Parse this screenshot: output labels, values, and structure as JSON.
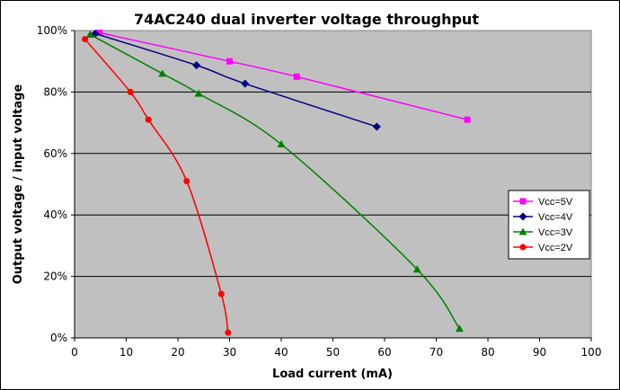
{
  "chart_data": {
    "type": "line",
    "title": "74AC240 dual inverter voltage throughput",
    "xlabel": "Load current (mA)",
    "ylabel": "Output voltage / input voltage",
    "xlim": [
      0,
      100
    ],
    "ylim": [
      0,
      100
    ],
    "x_ticks": [
      "0",
      "10",
      "20",
      "30",
      "40",
      "50",
      "60",
      "70",
      "80",
      "90",
      "100"
    ],
    "y_ticks": [
      "0%",
      "20%",
      "40%",
      "60%",
      "80%",
      "100%"
    ],
    "grid": "horizontal",
    "plot_background": "#c0c0c0",
    "legend_position": "right",
    "series": [
      {
        "name": "Vcc=5V",
        "color": "#ff00ff",
        "marker": "square",
        "points": [
          [
            4.8,
            99.3
          ],
          [
            30,
            90
          ],
          [
            43,
            85
          ],
          [
            76,
            71
          ]
        ]
      },
      {
        "name": "Vcc=4V",
        "color": "#000080",
        "marker": "diamond",
        "points": [
          [
            4,
            99
          ],
          [
            23.6,
            88.7
          ],
          [
            33,
            82.7
          ],
          [
            58.5,
            68.7
          ]
        ]
      },
      {
        "name": "Vcc=3V",
        "color": "#008000",
        "marker": "triangle",
        "points": [
          [
            3,
            98.7
          ],
          [
            17,
            86
          ],
          [
            24,
            79.5
          ],
          [
            40,
            63
          ],
          [
            66.3,
            22.3
          ],
          [
            74.5,
            3
          ]
        ]
      },
      {
        "name": "Vcc=2V",
        "color": "#ff0000",
        "marker": "circle",
        "points": [
          [
            2,
            97.2
          ],
          [
            10.8,
            80
          ],
          [
            14.3,
            71
          ],
          [
            21.7,
            51
          ],
          [
            28.4,
            14.3
          ],
          [
            29.7,
            1.7
          ]
        ]
      }
    ]
  }
}
